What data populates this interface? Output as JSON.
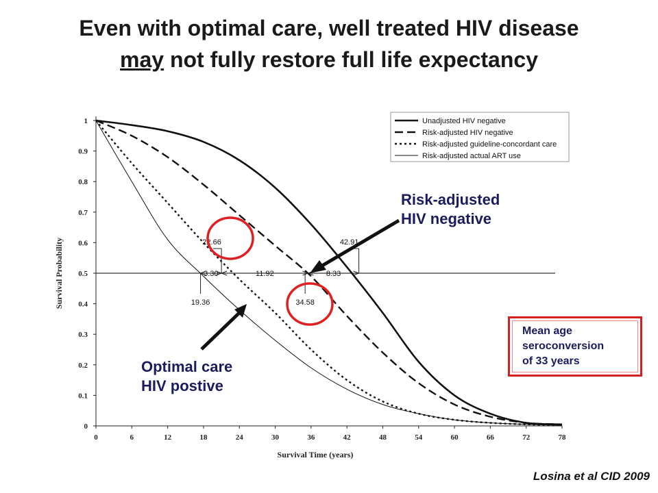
{
  "title": {
    "line1": "Even with optimal care, well treated HIV disease",
    "line2_underlined": "may",
    "line2_rest": " not fully restore full life expectancy"
  },
  "chart_data": {
    "type": "line",
    "xlabel": "Survival Time (years)",
    "ylabel": "Survival Probability",
    "xlim": [
      0,
      78
    ],
    "ylim": [
      0,
      1
    ],
    "x_ticks": [
      0,
      6,
      12,
      18,
      24,
      30,
      36,
      42,
      48,
      54,
      60,
      66,
      72,
      78
    ],
    "y_ticks": [
      0,
      0.1,
      0.2,
      0.3,
      0.4,
      0.5,
      0.6,
      0.7,
      0.8,
      0.9,
      1
    ],
    "legend_position": "top-right",
    "series": [
      {
        "name": "Unadjusted HIV negative",
        "style": "solid-thick",
        "x": [
          0,
          6,
          12,
          18,
          24,
          30,
          36,
          42,
          48,
          54,
          60,
          66,
          72,
          78
        ],
        "y": [
          1.0,
          0.985,
          0.965,
          0.93,
          0.87,
          0.78,
          0.66,
          0.52,
          0.37,
          0.21,
          0.1,
          0.04,
          0.01,
          0.005
        ]
      },
      {
        "name": "Risk-adjusted HIV negative",
        "style": "dashed",
        "x": [
          0,
          6,
          12,
          18,
          24,
          30,
          36,
          42,
          48,
          54,
          60,
          66,
          72,
          78
        ],
        "y": [
          1.0,
          0.95,
          0.88,
          0.79,
          0.69,
          0.59,
          0.49,
          0.36,
          0.24,
          0.14,
          0.07,
          0.03,
          0.01,
          0.005
        ]
      },
      {
        "name": "Risk-adjusted guideline-concordant care",
        "style": "dotted",
        "x": [
          0,
          6,
          12,
          18,
          24,
          30,
          36,
          42,
          48,
          54,
          60,
          66,
          72,
          78
        ],
        "y": [
          1.0,
          0.86,
          0.73,
          0.6,
          0.48,
          0.37,
          0.25,
          0.15,
          0.08,
          0.04,
          0.02,
          0.01,
          0.005,
          0.002
        ]
      },
      {
        "name": "Risk-adjusted actual ART use",
        "style": "solid-thin",
        "x": [
          0,
          6,
          12,
          18,
          24,
          30,
          36,
          42,
          48,
          54,
          60,
          66,
          72,
          78
        ],
        "y": [
          1.0,
          0.8,
          0.61,
          0.49,
          0.38,
          0.28,
          0.19,
          0.12,
          0.07,
          0.04,
          0.02,
          0.01,
          0.005,
          0.002
        ]
      }
    ],
    "reference_line_y": 0.5,
    "medians": [
      {
        "label": "19.36",
        "x": 17.5,
        "label_pos": "below"
      },
      {
        "label": "22.66",
        "x": 21.0,
        "label_pos": "above"
      },
      {
        "label": "34.58",
        "x": 35.0,
        "label_pos": "below"
      },
      {
        "label": "42.91",
        "x": 44.0,
        "label_pos": "above"
      }
    ],
    "differences": [
      {
        "label": "3.30",
        "from": 17.5,
        "to": 21.0
      },
      {
        "label": "11.92",
        "from": 21.0,
        "to": 35.5
      },
      {
        "label": "8.33",
        "from": 35.5,
        "to": 44.0
      }
    ]
  },
  "annotations": {
    "risk_adjusted_line1": "Risk-adjusted",
    "risk_adjusted_line2": "HIV negative",
    "optimal_line1": "Optimal care",
    "optimal_line2": "HIV postive",
    "mean_age_line1": "Mean age",
    "mean_age_line2": "seroconversion",
    "mean_age_line3": "of 33 years",
    "highlight_color": "#e02020",
    "arrow_color": "#111111"
  },
  "citation": "Losina et al CID 2009"
}
